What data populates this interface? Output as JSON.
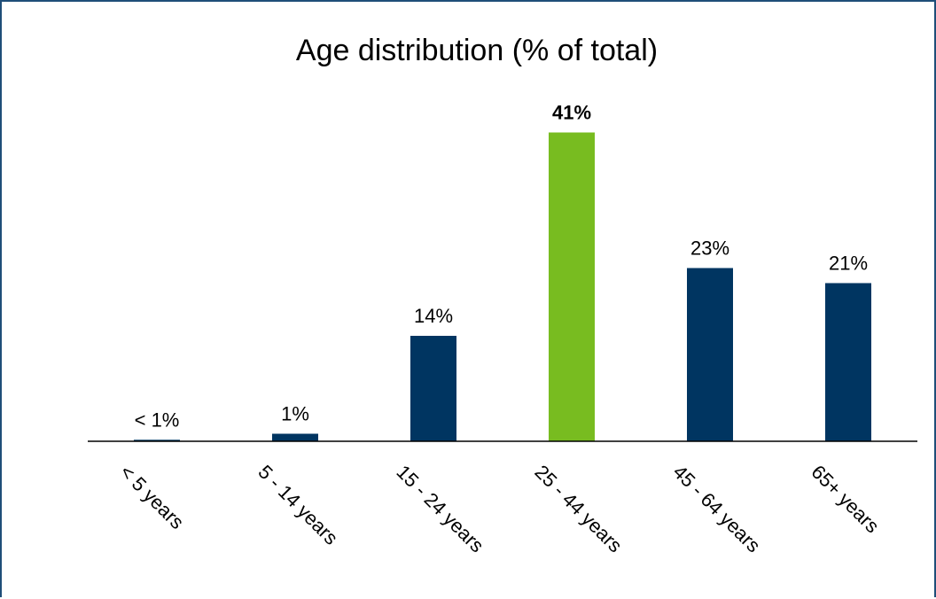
{
  "chart_data": {
    "type": "bar",
    "title": "Age distribution (% of total)",
    "xlabel": "",
    "ylabel": "",
    "categories": [
      "< 5 years",
      "5 - 14 years",
      "15 - 24 years",
      "25 - 44 years",
      "45 - 64 years",
      "65+ years"
    ],
    "values": [
      0.2,
      1,
      14,
      41,
      23,
      21
    ],
    "data_labels": [
      "< 1%",
      "1%",
      "14%",
      "41%",
      "23%",
      "21%"
    ],
    "highlight_index": 3,
    "ylim": [
      0,
      45
    ],
    "grid": false,
    "legend": "none",
    "colors": {
      "bar": "#003561",
      "highlight_bar": "#78bc20",
      "highlight_label": "#134f5c",
      "axis": "#000000",
      "border": "#1f4e79"
    }
  }
}
